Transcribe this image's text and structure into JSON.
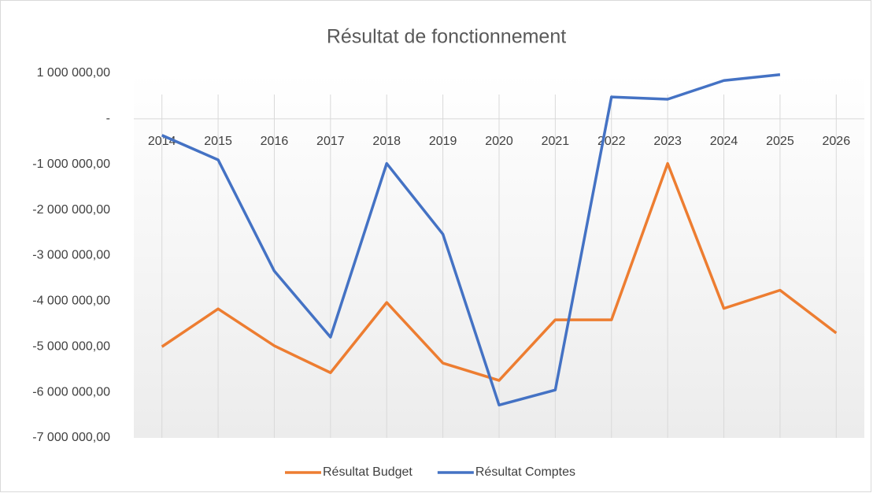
{
  "chart_data": {
    "type": "line",
    "title": "Résultat de fonctionnement",
    "categories": [
      "2014",
      "2015",
      "2016",
      "2017",
      "2018",
      "2019",
      "2020",
      "2021",
      "2022",
      "2023",
      "2024",
      "2025",
      "2026"
    ],
    "series": [
      {
        "name": "Résultat Budget",
        "color": "#ed7d31",
        "values": [
          -5000000,
          -4170000,
          -4980000,
          -5570000,
          -4030000,
          -5360000,
          -5740000,
          -4410000,
          -4410000,
          -980000,
          -4160000,
          -3760000,
          -4700000
        ]
      },
      {
        "name": "Résultat Comptes",
        "color": "#4472c4",
        "values": [
          -360000,
          -900000,
          -3340000,
          -4790000,
          -980000,
          -2530000,
          -6280000,
          -5950000,
          480000,
          430000,
          840000,
          970000,
          null
        ]
      }
    ],
    "ylim": [
      -7000000,
      1000000
    ],
    "yticks": [
      {
        "value": 1000000,
        "label": "1 000 000,00"
      },
      {
        "value": 0,
        "label": "-"
      },
      {
        "value": -1000000,
        "label": "-1 000 000,00"
      },
      {
        "value": -2000000,
        "label": "-2 000 000,00"
      },
      {
        "value": -3000000,
        "label": "-3 000 000,00"
      },
      {
        "value": -4000000,
        "label": "-4 000 000,00"
      },
      {
        "value": -5000000,
        "label": "-5 000 000,00"
      },
      {
        "value": -6000000,
        "label": "-6 000 000,00"
      },
      {
        "value": -7000000,
        "label": "-7 000 000,00"
      }
    ],
    "grid": "x",
    "legend": "bottom"
  }
}
